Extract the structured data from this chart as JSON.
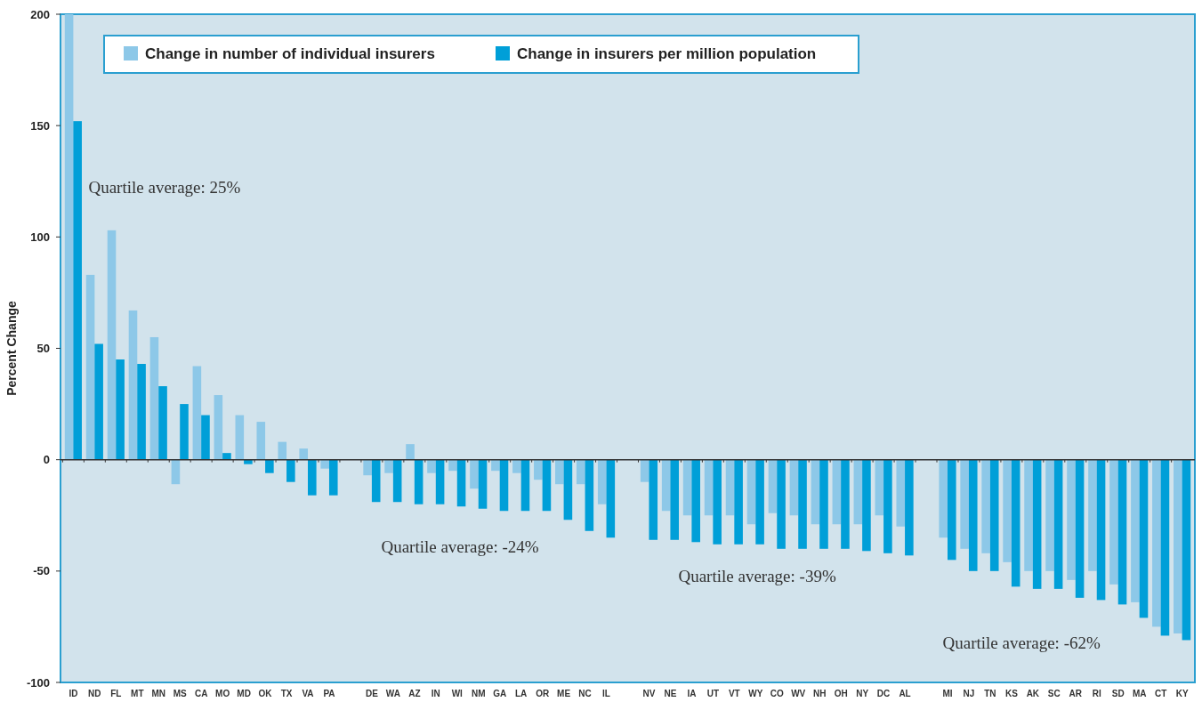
{
  "chart_data": {
    "type": "bar",
    "ylabel": "Percent Change",
    "categories": [
      "ID",
      "ND",
      "FL",
      "MT",
      "MN",
      "MS",
      "CA",
      "MO",
      "MD",
      "OK",
      "TX",
      "VA",
      "PA",
      null,
      "DE",
      "WA",
      "AZ",
      "IN",
      "WI",
      "NM",
      "GA",
      "LA",
      "OR",
      "ME",
      "NC",
      "IL",
      null,
      "NV",
      "NE",
      "IA",
      "UT",
      "VT",
      "WY",
      "CO",
      "WV",
      "NH",
      "OH",
      "NY",
      "DC",
      "AL",
      null,
      "MI",
      "NJ",
      "TN",
      "KS",
      "AK",
      "SC",
      "AR",
      "RI",
      "SD",
      "MA",
      "CT",
      "KY"
    ],
    "series": [
      {
        "name": "Change in number of individual insurers",
        "color": "#8dc8e8",
        "values": [
          200,
          83,
          103,
          67,
          55,
          -11,
          42,
          29,
          20,
          17,
          8,
          5,
          -4,
          null,
          -7,
          -6,
          7,
          -6,
          -5,
          -13,
          -5,
          -6,
          -9,
          -11,
          -11,
          -20,
          null,
          -10,
          -23,
          -25,
          -25,
          -25,
          -29,
          -24,
          -25,
          -29,
          -29,
          -29,
          -25,
          -30,
          null,
          -35,
          -40,
          -42,
          -46,
          -50,
          -50,
          -54,
          -50,
          -56,
          -64,
          -75,
          -78
        ]
      },
      {
        "name": "Change in insurers per million population",
        "color": "#009fd8",
        "values": [
          152,
          52,
          45,
          43,
          33,
          25,
          20,
          3,
          -2,
          -6,
          -10,
          -16,
          -16,
          null,
          -19,
          -19,
          -20,
          -20,
          -21,
          -22,
          -23,
          -23,
          -23,
          -27,
          -32,
          -35,
          null,
          -36,
          -36,
          -37,
          -38,
          -38,
          -38,
          -40,
          -40,
          -40,
          -40,
          -41,
          -42,
          -43,
          null,
          -45,
          -50,
          -50,
          -57,
          -58,
          -58,
          -62,
          -63,
          -65,
          -71,
          -79,
          -81
        ]
      }
    ],
    "ylim": [
      -100,
      200
    ],
    "yticks": [
      -100,
      -50,
      0,
      50,
      100,
      150,
      200
    ],
    "legend": "top left",
    "annotations": [
      "Quartile average: 25%",
      "Quartile average: -24%",
      "Quartile average: -39%",
      "Quartile average: -62%"
    ]
  }
}
